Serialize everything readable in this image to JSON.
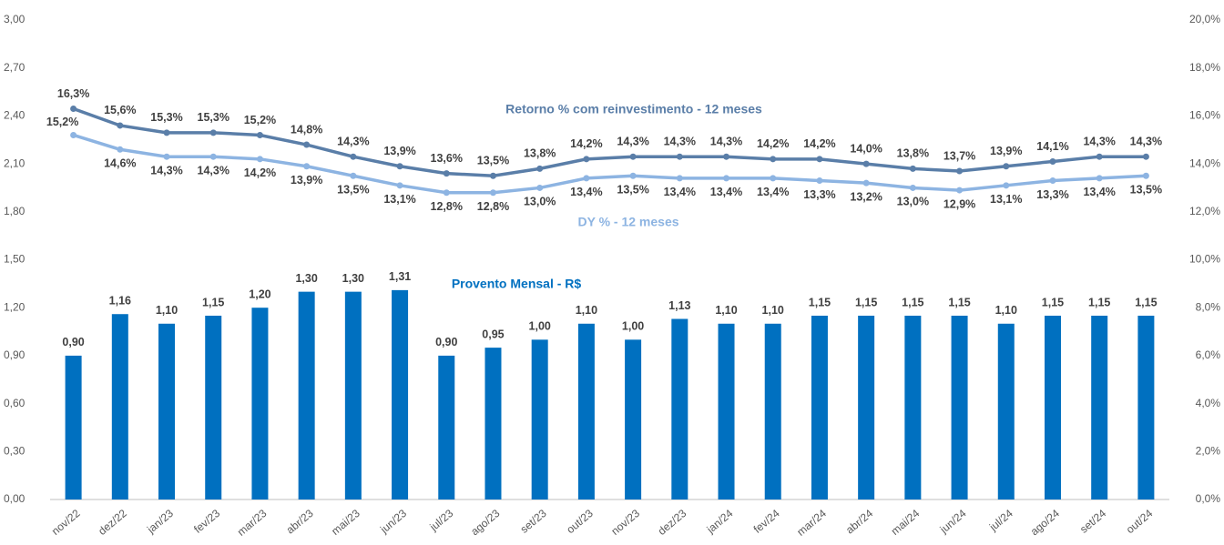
{
  "chart_data": {
    "type": "bar",
    "categories": [
      "nov/22",
      "dez/22",
      "jan/23",
      "fev/23",
      "mar/23",
      "abr/23",
      "mai/23",
      "jun/23",
      "jul/23",
      "ago/23",
      "set/23",
      "out/23",
      "nov/23",
      "dez/23",
      "jan/24",
      "fev/24",
      "mar/24",
      "abr/24",
      "mai/24",
      "jun/24",
      "jul/24",
      "ago/24",
      "set/24",
      "out/24"
    ],
    "series": [
      {
        "name": "Provento Mensal - R$",
        "type": "bar",
        "color": "#0070c0",
        "values": [
          0.9,
          1.16,
          1.1,
          1.15,
          1.2,
          1.3,
          1.3,
          1.31,
          0.9,
          0.95,
          1.0,
          1.1,
          1.0,
          1.13,
          1.1,
          1.1,
          1.15,
          1.15,
          1.15,
          1.15,
          1.1,
          1.15,
          1.15,
          1.15
        ],
        "value_labels": [
          "0,90",
          "1,16",
          "1,10",
          "1,15",
          "1,20",
          "1,30",
          "1,30",
          "1,31",
          "0,90",
          "0,95",
          "1,00",
          "1,10",
          "1,00",
          "1,13",
          "1,10",
          "1,10",
          "1,15",
          "1,15",
          "1,15",
          "1,15",
          "1,10",
          "1,15",
          "1,15",
          "1,15"
        ]
      },
      {
        "name": "Retorno % com reinvestimento - 12 meses",
        "type": "line",
        "axis": "y2",
        "color": "#5a7ea8",
        "values": [
          16.3,
          15.6,
          15.3,
          15.3,
          15.2,
          14.8,
          14.3,
          13.9,
          13.6,
          13.5,
          13.8,
          14.2,
          14.3,
          14.3,
          14.3,
          14.2,
          14.2,
          14.0,
          13.8,
          13.7,
          13.9,
          14.1,
          14.3,
          14.3
        ],
        "value_labels": [
          "16,3%",
          "15,6%",
          "15,3%",
          "15,3%",
          "15,2%",
          "14,8%",
          "14,3%",
          "13,9%",
          "13,6%",
          "13,5%",
          "13,8%",
          "14,2%",
          "14,3%",
          "14,3%",
          "14,3%",
          "14,2%",
          "14,2%",
          "14,0%",
          "13,8%",
          "13,7%",
          "13,9%",
          "14,1%",
          "14,3%",
          "14,3%"
        ]
      },
      {
        "name": "DY % - 12 meses",
        "type": "line",
        "axis": "y2",
        "color": "#8db4e2",
        "values": [
          15.2,
          14.6,
          14.3,
          14.3,
          14.2,
          13.9,
          13.5,
          13.1,
          12.8,
          12.8,
          13.0,
          13.4,
          13.5,
          13.4,
          13.4,
          13.4,
          13.3,
          13.2,
          13.0,
          12.9,
          13.1,
          13.3,
          13.4,
          13.5
        ],
        "value_labels": [
          "15,2%",
          "14,6%",
          "14,3%",
          "14,3%",
          "14,2%",
          "13,9%",
          "13,5%",
          "13,1%",
          "12,8%",
          "12,8%",
          "13,0%",
          "13,4%",
          "13,5%",
          "13,4%",
          "13,4%",
          "13,4%",
          "13,3%",
          "13,2%",
          "13,0%",
          "12,9%",
          "13,1%",
          "13,3%",
          "13,4%",
          "13,5%"
        ]
      }
    ],
    "ylim": [
      0,
      3
    ],
    "yticks": [
      {
        "value": 0,
        "label": "0,00"
      },
      {
        "value": 0.3,
        "label": "0,30"
      },
      {
        "value": 0.6,
        "label": "0,60"
      },
      {
        "value": 0.9,
        "label": "0,90"
      },
      {
        "value": 1.2,
        "label": "1,20"
      },
      {
        "value": 1.5,
        "label": "1,50"
      },
      {
        "value": 1.8,
        "label": "1,80"
      },
      {
        "value": 2.1,
        "label": "2,10"
      },
      {
        "value": 2.4,
        "label": "2,40"
      },
      {
        "value": 2.7,
        "label": "2,70"
      },
      {
        "value": 3,
        "label": "3,00"
      }
    ],
    "y2lim": [
      0,
      20
    ],
    "y2ticks": [
      {
        "value": 0,
        "label": "0,0%"
      },
      {
        "value": 2,
        "label": "2,0%"
      },
      {
        "value": 4,
        "label": "4,0%"
      },
      {
        "value": 6,
        "label": "6,0%"
      },
      {
        "value": 8,
        "label": "8,0%"
      },
      {
        "value": 10,
        "label": "10,0%"
      },
      {
        "value": 12,
        "label": "12,0%"
      },
      {
        "value": 14,
        "label": "14,0%"
      },
      {
        "value": 16,
        "label": "16,0%"
      },
      {
        "value": 18,
        "label": "18,0%"
      },
      {
        "value": 20,
        "label": "20,0%"
      }
    ],
    "grid": false
  }
}
